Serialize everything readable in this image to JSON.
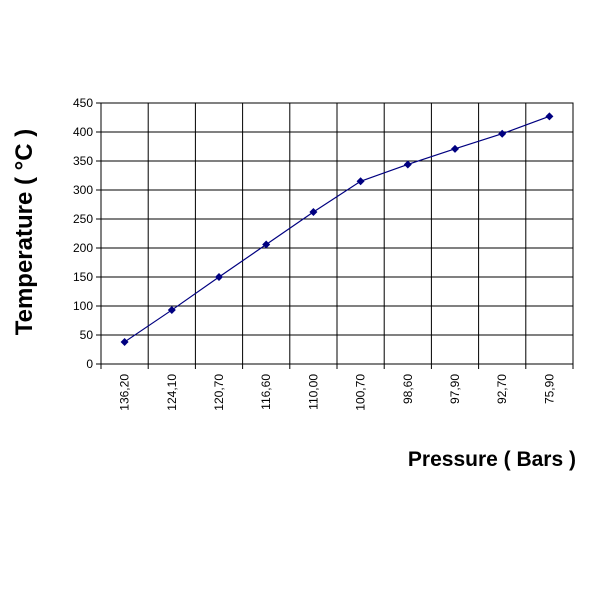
{
  "chart_data": {
    "type": "line",
    "xlabel": "Pressure ( Bars )",
    "ylabel": "Temperature ( °C )",
    "categories": [
      "136,20",
      "124,10",
      "120,70",
      "116,60",
      "110,00",
      "100,70",
      "98,60",
      "97,90",
      "92,70",
      "75,90"
    ],
    "series": [
      {
        "values": [
          38,
          93,
          150,
          206,
          262,
          315,
          344,
          371,
          397,
          427
        ]
      }
    ],
    "ylim": [
      0,
      450
    ],
    "y_ticks": [
      "0",
      "50",
      "100",
      "150",
      "200",
      "250",
      "300",
      "350",
      "400",
      "450"
    ],
    "grid": true,
    "line_color": "#000080",
    "marker": "diamond"
  }
}
